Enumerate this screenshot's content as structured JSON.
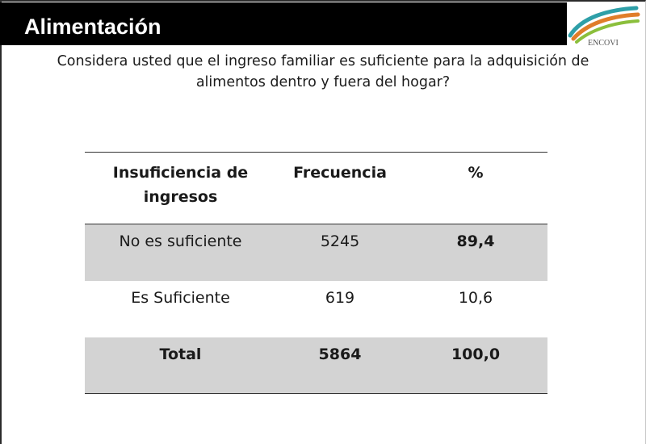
{
  "slide": {
    "title": "Alimentación",
    "question": "Considera usted que el ingreso familiar es suficiente para la adquisición de alimentos dentro y fuera del hogar?",
    "logo_text": "ENCOVI"
  },
  "table": {
    "headers": [
      "Insuficiencia de ingresos",
      "Frecuencia",
      "%"
    ],
    "rows": [
      {
        "label": "No es suficiente",
        "frequency": "5245",
        "percent": "89,4"
      },
      {
        "label": "Es Suficiente",
        "frequency": "619",
        "percent": "10,6"
      }
    ],
    "total": {
      "label": "Total",
      "frequency": "5864",
      "percent": "100,0"
    }
  },
  "colors": {
    "title_bar": "#000000",
    "highlight": "#c0141e",
    "shaded_row": "#d3d3d3"
  }
}
